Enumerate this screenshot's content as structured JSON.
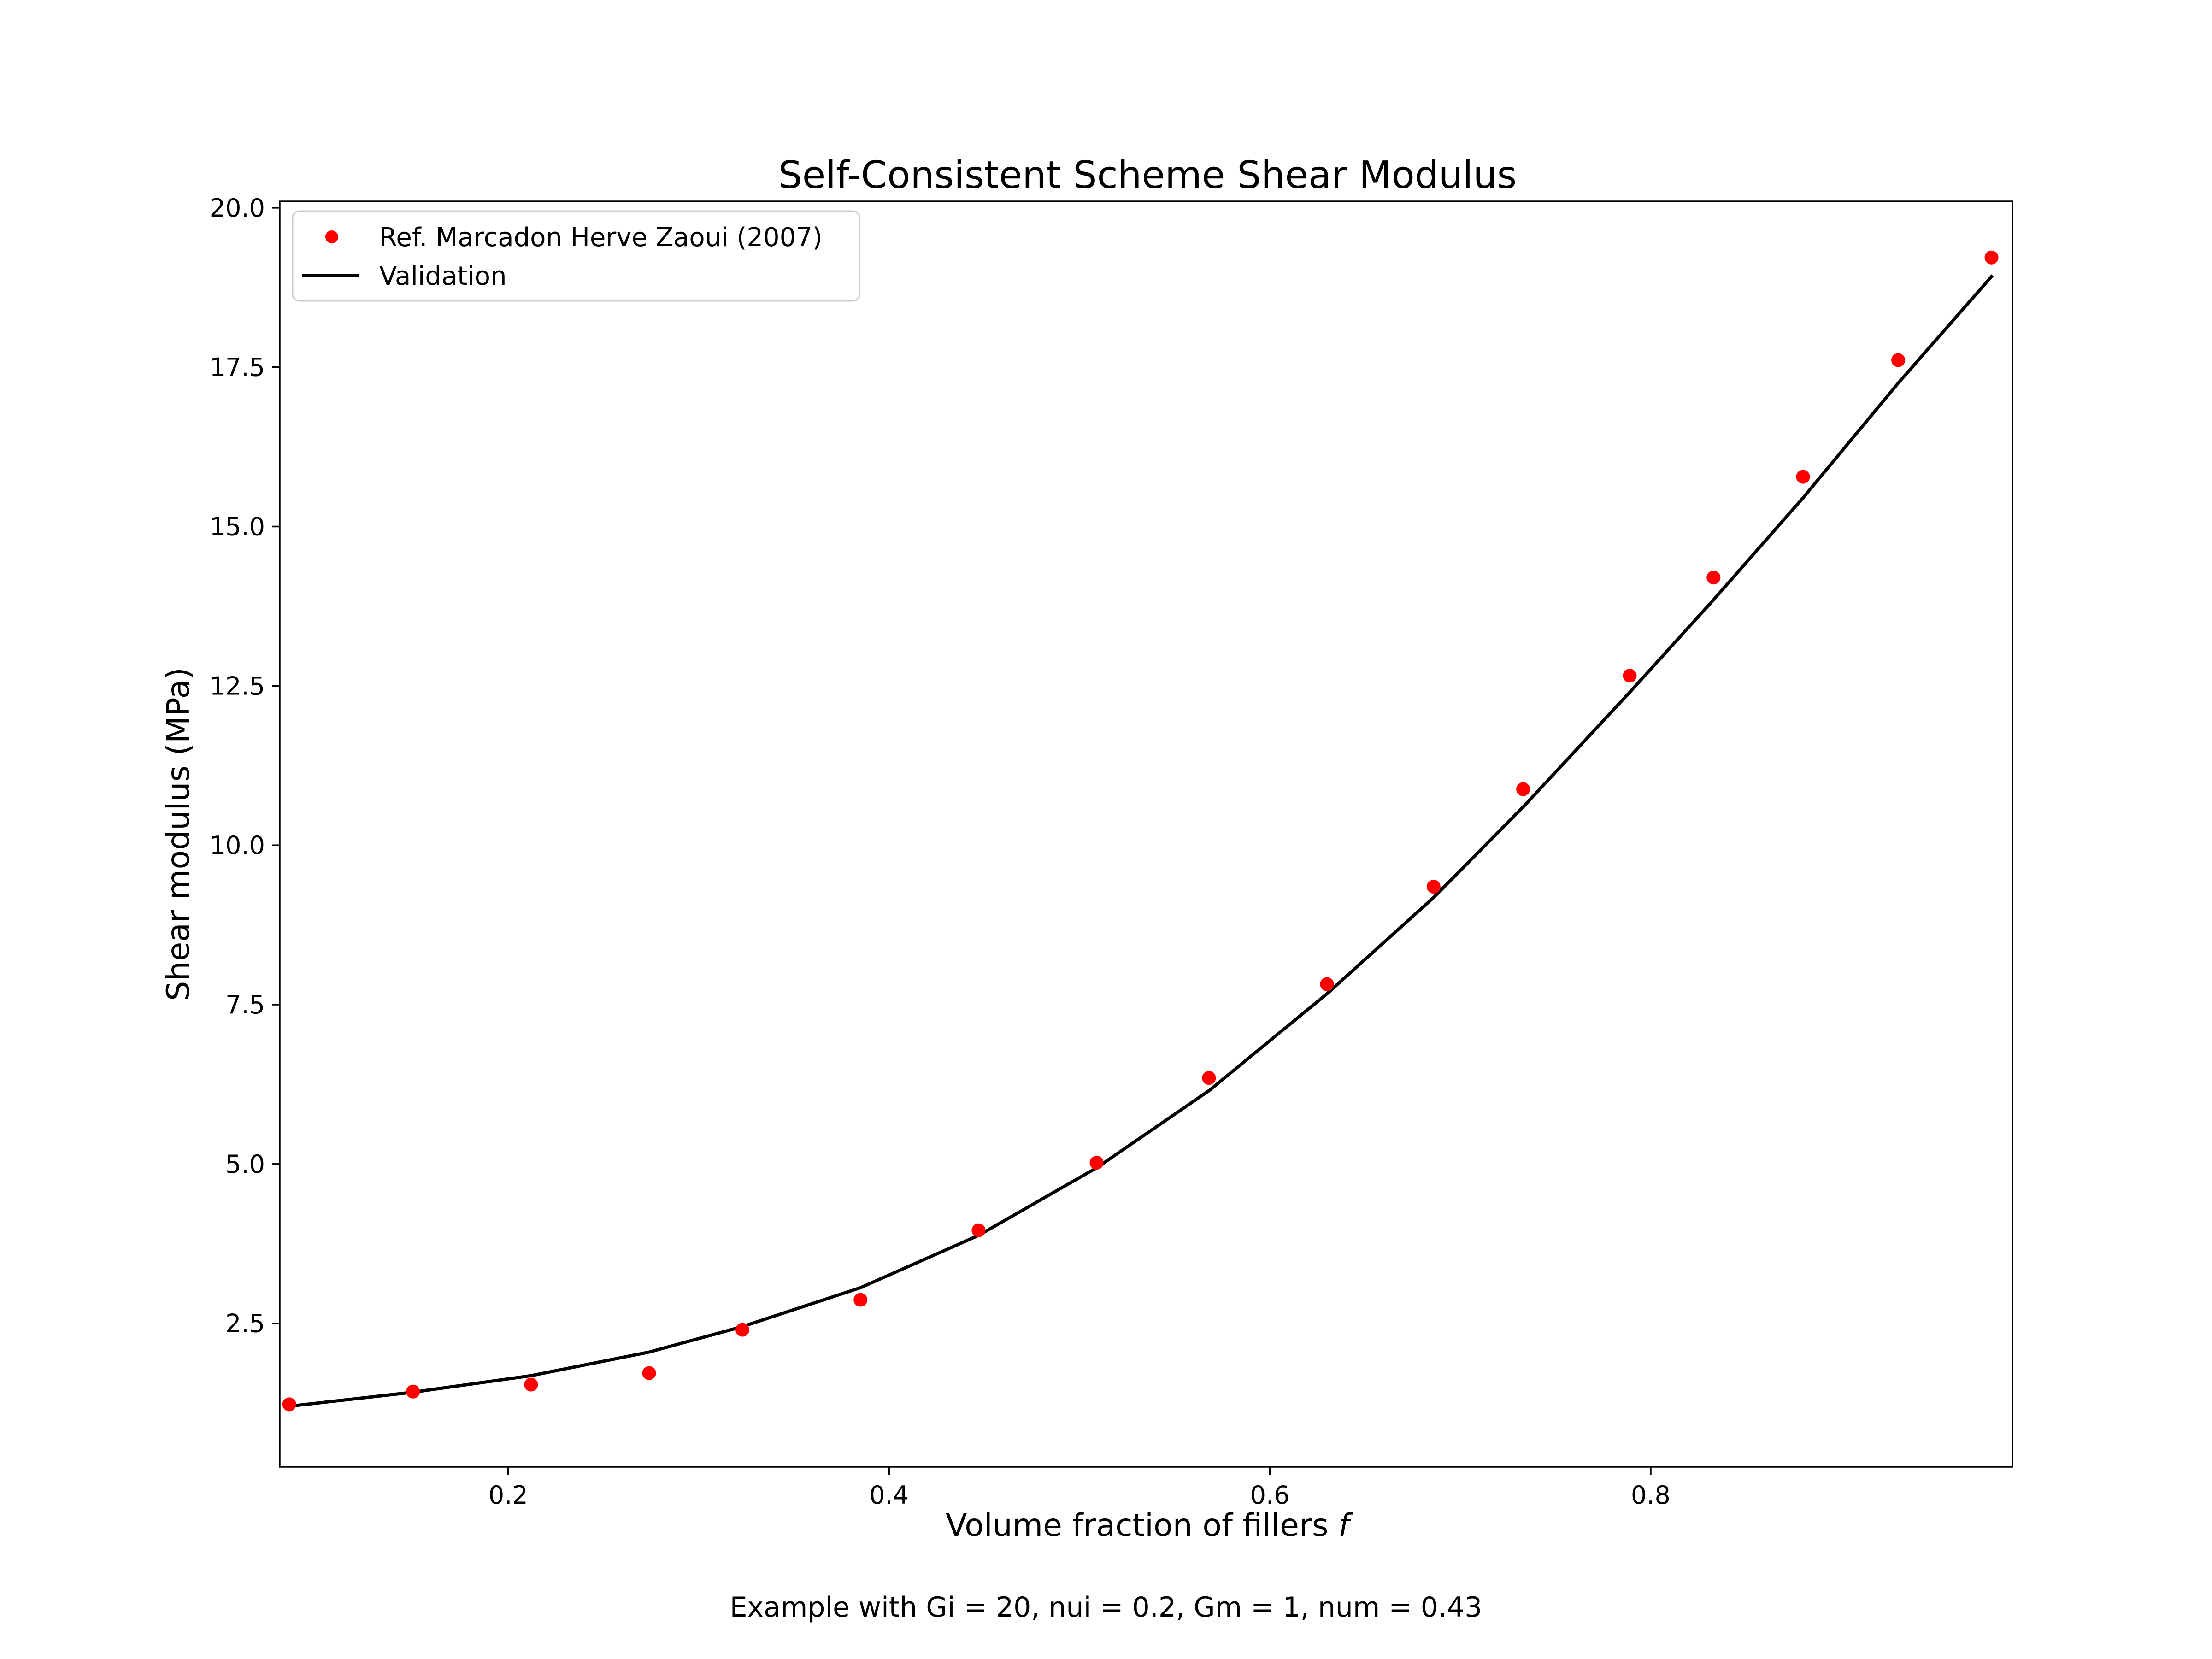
{
  "chart_data": {
    "type": "line",
    "title": "Self-Consistent Scheme Shear Modulus",
    "xlabel": "Volume fraction of fillers",
    "xlabel_italic": "f",
    "ylabel": "Shear modulus (MPa)",
    "caption": "Example with Gi = 20, nui = 0.2, Gm = 1, num = 0.43",
    "xlim": [
      0.08,
      0.99
    ],
    "ylim": [
      0.25,
      20.1
    ],
    "xticks": [
      {
        "value": 0.2,
        "label": "0.2"
      },
      {
        "value": 0.4,
        "label": "0.4"
      },
      {
        "value": 0.6,
        "label": "0.6"
      },
      {
        "value": 0.8,
        "label": "0.8"
      }
    ],
    "yticks": [
      {
        "value": 2.5,
        "label": "2.5"
      },
      {
        "value": 5.0,
        "label": "5.0"
      },
      {
        "value": 7.5,
        "label": "7.5"
      },
      {
        "value": 10.0,
        "label": "10.0"
      },
      {
        "value": 12.5,
        "label": "12.5"
      },
      {
        "value": 15.0,
        "label": "15.0"
      },
      {
        "value": 17.5,
        "label": "17.5"
      },
      {
        "value": 20.0,
        "label": "20.0"
      }
    ],
    "grid": false,
    "legend_position": "top-left",
    "series": [
      {
        "name": "Ref. Marcadon Herve Zaoui (2007)",
        "kind": "scatter",
        "color": "#ff0000",
        "x": [
          0.085,
          0.15,
          0.212,
          0.274,
          0.323,
          0.385,
          0.447,
          0.509,
          0.568,
          0.63,
          0.686,
          0.733,
          0.789,
          0.833,
          0.88,
          0.93,
          0.979
        ],
        "y": [
          1.23,
          1.43,
          1.54,
          1.72,
          2.4,
          2.87,
          3.96,
          5.02,
          6.35,
          7.82,
          9.35,
          10.88,
          12.66,
          14.2,
          15.78,
          17.61,
          19.22
        ]
      },
      {
        "name": "Validation",
        "kind": "line",
        "color": "#000000",
        "x": [
          0.085,
          0.15,
          0.212,
          0.274,
          0.323,
          0.385,
          0.447,
          0.509,
          0.568,
          0.63,
          0.686,
          0.733,
          0.789,
          0.833,
          0.88,
          0.93,
          0.979
        ],
        "y": [
          1.2,
          1.42,
          1.68,
          2.05,
          2.45,
          3.06,
          3.88,
          4.94,
          6.15,
          7.67,
          9.18,
          10.6,
          12.4,
          13.85,
          15.45,
          17.25,
          18.92
        ]
      }
    ]
  }
}
